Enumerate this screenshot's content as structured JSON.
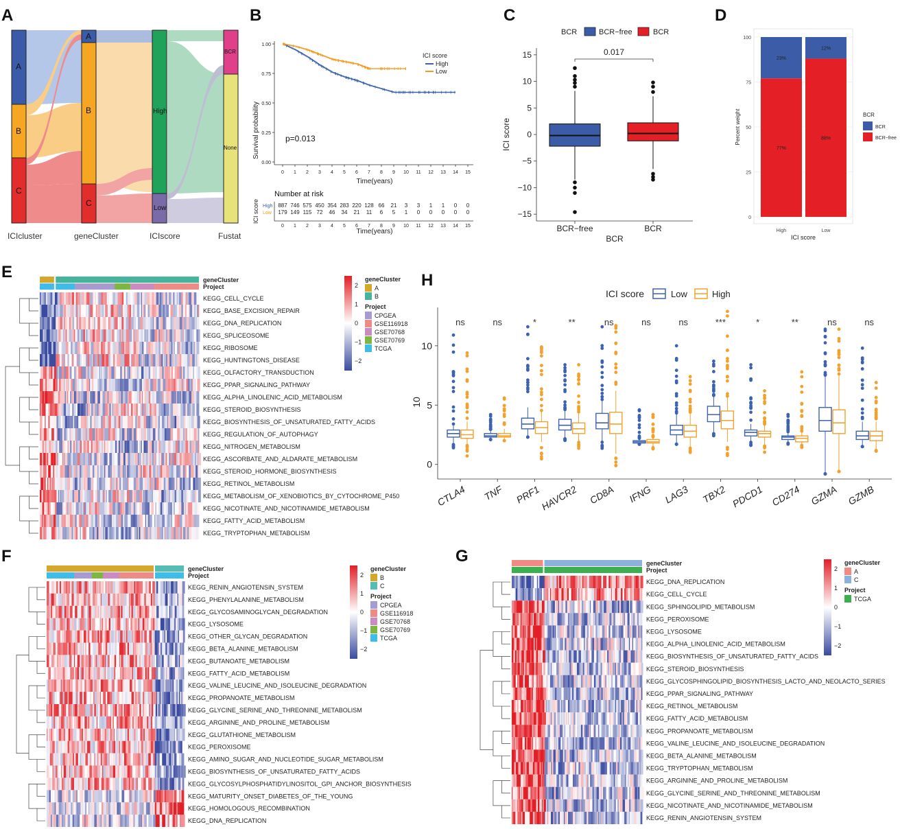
{
  "colors": {
    "a": "#3a5ba8",
    "b": "#f5a623",
    "c": "#e32d2d",
    "high": "#3a62a8",
    "low": "#f29a1f",
    "bcr": "#e41f26",
    "bcrfree": "#3c5ca8",
    "hm_red": "#e21f26",
    "hm_blue": "#3b4ba0",
    "geneA": "#d4a82a",
    "geneB": "#46b49c",
    "geneC": "#56bdb5",
    "geneA_g": "#f08a82",
    "geneC_g": "#8ab2dd",
    "p_cpgea": "#a89bd1",
    "p_gse116918": "#ef8b86",
    "p_gse70768": "#c98bc0",
    "p_gse70769": "#7db640",
    "p_tcga": "#3dbde8",
    "hi_box": "#3d62b0",
    "lo_box": "#f2a22c"
  },
  "panels": {
    "A": "A",
    "B": "B",
    "C": "C",
    "D": "D",
    "E": "E",
    "F": "F",
    "G": "G",
    "H": "H"
  },
  "panelA": {
    "axes": [
      "ICIcluster",
      "geneCluster",
      "ICIscore",
      "Fustat"
    ],
    "ici_nodes": [
      "A",
      "B",
      "C"
    ],
    "gene_nodes": [
      "A",
      "B",
      "C"
    ],
    "score_nodes": [
      "High",
      "Low"
    ],
    "fustat_nodes": [
      "BCR",
      "None"
    ]
  },
  "panelB": {
    "ylabel": "Survival probability",
    "xlabel": "Time(years)",
    "pvalue": "p=0.013",
    "legend_title": "ICI score",
    "legend": [
      "High",
      "Low"
    ],
    "yticks": [
      "0.00",
      "0.25",
      "0.50",
      "0.75",
      "1.00"
    ],
    "xticks": [
      "0",
      "1",
      "2",
      "3",
      "4",
      "5",
      "6",
      "7",
      "8",
      "9",
      "10",
      "11",
      "12",
      "13",
      "14",
      "15"
    ],
    "risk_title": "Number at risk",
    "risk_ylabel": "ICI score",
    "risk_rows": [
      {
        "name": "High",
        "values": [
          "887",
          "746",
          "575",
          "450",
          "354",
          "283",
          "220",
          "128",
          "66",
          "21",
          "3",
          "3",
          "1",
          "1",
          "0",
          "0"
        ]
      },
      {
        "name": "Low",
        "values": [
          "179",
          "149",
          "115",
          "72",
          "46",
          "34",
          "21",
          "11",
          "6",
          "5",
          "1",
          "0",
          "0",
          "0",
          "0",
          "0"
        ]
      }
    ],
    "chart_data": {
      "type": "line",
      "series": [
        {
          "name": "High",
          "x": [
            0,
            1,
            2,
            3,
            4,
            5,
            6,
            7,
            8,
            9,
            10,
            14
          ],
          "y": [
            1.0,
            0.95,
            0.89,
            0.82,
            0.76,
            0.72,
            0.69,
            0.65,
            0.62,
            0.59,
            0.59,
            0.59
          ]
        },
        {
          "name": "Low",
          "x": [
            0,
            1,
            2,
            3,
            4,
            5,
            6,
            7,
            8,
            9,
            10
          ],
          "y": [
            1.0,
            0.98,
            0.95,
            0.91,
            0.87,
            0.85,
            0.83,
            0.79,
            0.79,
            0.79,
            0.79
          ]
        }
      ],
      "xlim": [
        0,
        15
      ],
      "ylim": [
        0,
        1
      ]
    }
  },
  "panelC": {
    "legend_title": "BCR",
    "legend": [
      "BCR−free",
      "BCR"
    ],
    "ylabel": "ICI score",
    "xlabel": "BCR",
    "categories": [
      "BCR−free",
      "BCR"
    ],
    "pvalue": "0.017",
    "yticks": [
      "−15",
      "−10",
      "−5",
      "0",
      "5",
      "10",
      "15"
    ],
    "chart_data": {
      "type": "box",
      "categories": [
        "BCR-free",
        "BCR"
      ],
      "boxes": [
        {
          "q1": -2.2,
          "median": -0.2,
          "q3": 2.0,
          "whisk_lo": -8.5,
          "whisk_hi": 8.2,
          "outliers": [
            9,
            9.7,
            10.3,
            11,
            12.5,
            -9,
            -10,
            -11,
            -14.6
          ]
        },
        {
          "q1": -1.2,
          "median": 0.2,
          "q3": 2.2,
          "whisk_lo": -6.5,
          "whisk_hi": 7.2,
          "outliers": [
            8,
            9,
            9.8,
            -7.4,
            -8,
            -8.5
          ]
        }
      ],
      "ylim": [
        -15.5,
        15.5
      ]
    }
  },
  "panelD": {
    "ylabel": "Percent weight",
    "xlabel": "ICI score",
    "categories": [
      "High",
      "Low"
    ],
    "yticks": [
      "0",
      "25",
      "50",
      "75",
      "100"
    ],
    "legend_title": "BCR",
    "legend": [
      "BCR",
      "BCR−free"
    ],
    "labels_high": [
      "23%",
      "77%"
    ],
    "labels_low": [
      "12%",
      "88%"
    ],
    "chart_data": {
      "type": "bar",
      "categories": [
        "High",
        "Low"
      ],
      "series": [
        {
          "name": "BCR",
          "values": [
            23,
            12
          ]
        },
        {
          "name": "BCR-free",
          "values": [
            77,
            88
          ]
        }
      ]
    }
  },
  "panelE": {
    "annot_labels": [
      "geneCluster",
      "Project"
    ],
    "rows": [
      "KEGG_CELL_CYCLE",
      "KEGG_BASE_EXCISION_REPAIR",
      "KEGG_DNA_REPLICATION",
      "KEGG_SPLICEOSOME",
      "KEGG_RIBOSOME",
      "KEGG_HUNTINGTONS_DISEASE",
      "KEGG_OLFACTORY_TRANSDUCTION",
      "KEGG_PPAR_SIGNALING_PATHWAY",
      "KEGG_ALPHA_LINOLENIC_ACID_METABOLISM",
      "KEGG_STEROID_BIOSYNTHESIS",
      "KEGG_BIOSYNTHESIS_OF_UNSATURATED_FATTY_ACIDS",
      "KEGG_REGULATION_OF_AUTOPHAGY",
      "KEGG_NITROGEN_METABOLISM",
      "KEGG_ASCORBATE_AND_ALDARATE_METABOLISM",
      "KEGG_STEROID_HORMONE_BIOSYNTHESIS",
      "KEGG_RETINOL_METABOLISM",
      "KEGG_METABOLISM_OF_XENOBIOTICS_BY_CYTOCHROME_P450",
      "KEGG_NICOTINATE_AND_NICOTINAMIDE_METABOLISM",
      "KEGG_FATTY_ACID_METABOLISM",
      "KEGG_TRYPTOPHAN_METABOLISM"
    ],
    "scale": [
      "2",
      "1",
      "0",
      "−1",
      "−2"
    ],
    "legend_gene_title": "geneCluster",
    "legend_gene": [
      "A",
      "B"
    ],
    "legend_proj_title": "Project",
    "legend_proj": [
      "CPGEA",
      "GSE116918",
      "GSE70768",
      "GSE70769",
      "TCGA"
    ]
  },
  "panelF": {
    "annot_labels": [
      "geneCluster",
      "Project"
    ],
    "rows": [
      "KEGG_RENIN_ANGIOTENSIN_SYSTEM",
      "KEGG_PHENYLALANINE_METABOLISM",
      "KEGG_GLYCOSAMINOGLYCAN_DEGRADATION",
      "KEGG_LYSOSOME",
      "KEGG_OTHER_GLYCAN_DEGRADATION",
      "KEGG_BETA_ALANINE_METABOLISM",
      "KEGG_BUTANOATE_METABOLISM",
      "KEGG_FATTY_ACID_METABOLISM",
      "KEGG_VALINE_LEUCINE_AND_ISOLEUCINE_DEGRADATION",
      "KEGG_PROPANOATE_METABOLISM",
      "KEGG_GLYCINE_SERINE_AND_THREONINE_METABOLISM",
      "KEGG_ARGININE_AND_PROLINE_METABOLISM",
      "KEGG_GLUTATHIONE_METABOLISM",
      "KEGG_PEROXISOME",
      "KEGG_AMINO_SUGAR_AND_NUCLEOTIDE_SUGAR_METABOLISM",
      "KEGG_BIOSYNTHESIS_OF_UNSATURATED_FATTY_ACIDS",
      "KEGG_GLYCOSYLPHOSPHATIDYLINOSITOL_GPI_ANCHOR_BIOSYNTHESIS",
      "KEGG_MATURITY_ONSET_DIABETES_OF_THE_YOUNG",
      "KEGG_HOMOLOGOUS_RECOMBINATION",
      "KEGG_DNA_REPLICATION"
    ],
    "scale": [
      "2",
      "1",
      "0",
      "−1",
      "−2"
    ],
    "legend_gene_title": "geneCluster",
    "legend_gene": [
      "B",
      "C"
    ],
    "legend_proj_title": "Project",
    "legend_proj": [
      "CPGEA",
      "GSE116918",
      "GSE70768",
      "GSE70769",
      "TCGA"
    ]
  },
  "panelG": {
    "annot_labels": [
      "geneCluster",
      "Project"
    ],
    "rows": [
      "KEGG_DNA_REPLICATION",
      "KEGG_CELL_CYCLE",
      "KEGG_SPHINGOLIPID_METABOLISM",
      "KEGG_PEROXISOME",
      "KEGG_LYSOSOME",
      "KEGG_ALPHA_LINOLENIC_ACID_METABOLISM",
      "KEGG_BIOSYNTHESIS_OF_UNSATURATED_FATTY_ACIDS",
      "KEGG_STEROID_BIOSYNTHESIS",
      "KEGG_GLYCOSPHINGOLIPID_BIOSYNTHESIS_LACTO_AND_NEOLACTO_SERIES",
      "KEGG_PPAR_SIGNALING_PATHWAY",
      "KEGG_RETINOL_METABOLISM",
      "KEGG_FATTY_ACID_METABOLISM",
      "KEGG_PROPANOATE_METABOLISM",
      "KEGG_VALINE_LEUCINE_AND_ISOLEUCINE_DEGRADATION",
      "KEGG_BETA_ALANINE_METABOLISM",
      "KEGG_TRYPTOPHAN_METABOLISM",
      "KEGG_ARGININE_AND_PROLINE_METABOLISM",
      "KEGG_GLYCINE_SERINE_AND_THREONINE_METABOLISM",
      "KEGG_NICOTINATE_AND_NICOTINAMIDE_METABOLISM",
      "KEGG_RENIN_ANGIOTENSIN_SYSTEM"
    ],
    "scale": [
      "2",
      "1",
      "0",
      "−1",
      "−2"
    ],
    "legend_gene_title": "geneCluster",
    "legend_gene": [
      "A",
      "C"
    ],
    "legend_proj_title": "Project",
    "legend_proj": [
      "TCGA"
    ]
  },
  "panelH": {
    "legend_title": "ICI score",
    "legend": [
      "Low",
      "High"
    ],
    "ylabel": "10",
    "yticks": [
      "0",
      "5",
      "10"
    ],
    "genes": [
      "CTLA4",
      "TNF",
      "PRF1",
      "HAVCR2",
      "CD8A",
      "IFNG",
      "LAG3",
      "TBX2",
      "PDCD1",
      "CD274",
      "GZMA",
      "GZMB"
    ],
    "sig": [
      "ns",
      "ns",
      "*",
      "**",
      "ns",
      "ns",
      "ns",
      "***",
      "*",
      "**",
      "ns",
      "ns"
    ],
    "chart_data": {
      "type": "box",
      "ylim": [
        -1,
        13
      ],
      "low": [
        {
          "q1": 2.3,
          "median": 2.6,
          "q3": 2.9,
          "lo": 1.8,
          "hi": 3.4,
          "out_lo": 1.2,
          "out_hi": 10.9
        },
        {
          "q1": 2.3,
          "median": 2.4,
          "q3": 2.6,
          "lo": 2.1,
          "hi": 2.9,
          "out_lo": 2.1,
          "out_hi": 4.2
        },
        {
          "q1": 3.0,
          "median": 3.4,
          "q3": 3.9,
          "lo": 2.3,
          "hi": 4.8,
          "out_lo": 2.3,
          "out_hi": 11.6
        },
        {
          "q1": 2.9,
          "median": 3.3,
          "q3": 3.8,
          "lo": 2.2,
          "hi": 4.6,
          "out_lo": 2.0,
          "out_hi": 8.4
        },
        {
          "q1": 3.0,
          "median": 3.5,
          "q3": 4.3,
          "lo": 1.9,
          "hi": 5.4,
          "out_lo": 1.2,
          "out_hi": 11.6
        },
        {
          "q1": 1.8,
          "median": 1.9,
          "q3": 2.0,
          "lo": 1.7,
          "hi": 2.2,
          "out_lo": 1.7,
          "out_hi": 4.6
        },
        {
          "q1": 2.5,
          "median": 2.9,
          "q3": 3.3,
          "lo": 1.7,
          "hi": 4.3,
          "out_lo": 1.7,
          "out_hi": 10.0
        },
        {
          "q1": 3.6,
          "median": 4.2,
          "q3": 4.9,
          "lo": 2.6,
          "hi": 5.8,
          "out_lo": 2.4,
          "out_hi": 8.7
        },
        {
          "q1": 2.4,
          "median": 2.7,
          "q3": 2.9,
          "lo": 1.9,
          "hi": 3.4,
          "out_lo": 1.6,
          "out_hi": 8.4
        },
        {
          "q1": 2.1,
          "median": 2.3,
          "q3": 2.4,
          "lo": 1.8,
          "hi": 2.7,
          "out_lo": 1.7,
          "out_hi": 4.2
        },
        {
          "q1": 2.8,
          "median": 3.7,
          "q3": 4.8,
          "lo": -0.8,
          "hi": 7.5,
          "out_lo": -0.8,
          "out_hi": 11.4
        },
        {
          "q1": 2.1,
          "median": 2.4,
          "q3": 2.8,
          "lo": 1.5,
          "hi": 3.6,
          "out_lo": 1.5,
          "out_hi": 9.8
        }
      ],
      "high": [
        {
          "q1": 2.2,
          "median": 2.5,
          "q3": 2.9,
          "lo": 1.6,
          "hi": 3.6,
          "out_lo": 0.6,
          "out_hi": 9.4
        },
        {
          "q1": 2.3,
          "median": 2.4,
          "q3": 2.6,
          "lo": 2.0,
          "hi": 3.0,
          "out_lo": 2.0,
          "out_hi": 5.6
        },
        {
          "q1": 2.6,
          "median": 3.1,
          "q3": 3.6,
          "lo": 1.9,
          "hi": 4.5,
          "out_lo": 0.3,
          "out_hi": 9.9
        },
        {
          "q1": 2.6,
          "median": 3.0,
          "q3": 3.5,
          "lo": 1.9,
          "hi": 4.3,
          "out_lo": 1.3,
          "out_hi": 8.4
        },
        {
          "q1": 2.6,
          "median": 3.4,
          "q3": 4.4,
          "lo": 0.9,
          "hi": 6.2,
          "out_lo": -0.5,
          "out_hi": 11.7
        },
        {
          "q1": 1.8,
          "median": 1.9,
          "q3": 2.1,
          "lo": 1.5,
          "hi": 2.3,
          "out_lo": 1.3,
          "out_hi": 4.2
        },
        {
          "q1": 2.3,
          "median": 2.8,
          "q3": 3.3,
          "lo": 1.5,
          "hi": 4.4,
          "out_lo": 0.9,
          "out_hi": 7.4
        },
        {
          "q1": 3.0,
          "median": 3.7,
          "q3": 4.5,
          "lo": 1.9,
          "hi": 5.7,
          "out_lo": 0.6,
          "out_hi": 12.9
        },
        {
          "q1": 2.3,
          "median": 2.6,
          "q3": 2.8,
          "lo": 1.7,
          "hi": 3.4,
          "out_lo": 1.0,
          "out_hi": 6.2
        },
        {
          "q1": 1.9,
          "median": 2.2,
          "q3": 2.4,
          "lo": 1.6,
          "hi": 2.8,
          "out_lo": 1.4,
          "out_hi": 7.8
        },
        {
          "q1": 2.6,
          "median": 3.5,
          "q3": 4.6,
          "lo": -0.6,
          "hi": 7.6,
          "out_lo": -0.6,
          "out_hi": 11.4
        },
        {
          "q1": 2.0,
          "median": 2.4,
          "q3": 2.8,
          "lo": 1.2,
          "hi": 3.6,
          "out_lo": 1.1,
          "out_hi": 6.9
        }
      ]
    }
  }
}
